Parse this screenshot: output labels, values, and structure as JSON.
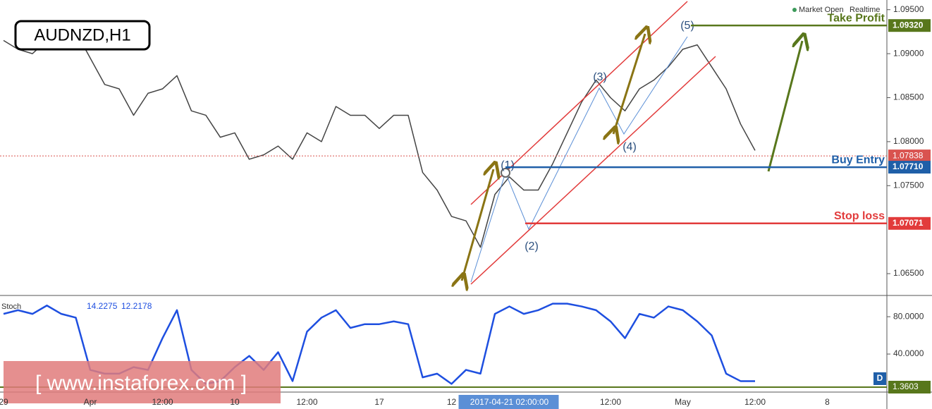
{
  "chart_data": [
    {
      "type": "line",
      "title": "AUDNZD,H1",
      "status": "Market Open",
      "mode": "Realtime",
      "categories": [
        "29",
        null,
        null,
        null,
        null,
        null,
        "Apr",
        null,
        null,
        null,
        null,
        "12:00",
        null,
        null,
        null,
        null,
        "10",
        null,
        null,
        null,
        null,
        "12:00",
        null,
        null,
        null,
        null,
        "17",
        null,
        null,
        null,
        null,
        "12",
        null,
        null,
        null,
        "2017-04-21 02:00:00",
        null,
        null,
        null,
        null,
        null,
        null,
        "12:00",
        null,
        null,
        null,
        null,
        "May",
        null,
        null,
        null,
        null,
        "12:00",
        null,
        null,
        null,
        null,
        "8"
      ],
      "series": [
        {
          "color": "#444444",
          "values": [
            1.0915,
            1.0905,
            1.09,
            1.0915,
            1.092,
            1.0925,
            1.0895,
            1.0865,
            1.086,
            1.083,
            1.0855,
            1.086,
            1.0875,
            1.0835,
            1.083,
            1.0805,
            1.081,
            1.078,
            1.0785,
            1.0795,
            1.078,
            1.081,
            1.08,
            1.084,
            1.083,
            1.083,
            1.0815,
            1.083,
            1.083,
            1.0765,
            1.0745,
            1.0715,
            1.071,
            1.068,
            1.074,
            1.076,
            1.0745,
            1.0745,
            1.0775,
            1.081,
            1.0845,
            1.087,
            1.085,
            1.0835,
            1.086,
            1.087,
            1.0885,
            1.0905,
            1.091,
            1.0885,
            1.086,
            1.082,
            1.079,
            null,
            null,
            null,
            null,
            null
          ]
        }
      ],
      "ylim": [
        1.0626,
        1.0961
      ],
      "yticks": [
        {
          "value": 1.065,
          "label": "1.06500"
        },
        {
          "value": 1.075,
          "label": "1.07500"
        },
        {
          "value": 1.08,
          "label": "1.08000"
        },
        {
          "value": 1.085,
          "label": "1.08500"
        },
        {
          "value": 1.09,
          "label": "1.09000"
        },
        {
          "value": 1.095,
          "label": "1.09500"
        }
      ],
      "levels": [
        {
          "name": "Take Profit",
          "value": 1.0932,
          "label": "1.09320",
          "color": "#58771c"
        },
        {
          "name": "Buy Entry",
          "value": 1.0771,
          "label": "1.07710",
          "color": "#1f5fa8"
        },
        {
          "name": "Stop loss",
          "value": 1.07071,
          "label": "1.07071",
          "color": "#e23b3b"
        }
      ],
      "last_price": {
        "value": 1.07838,
        "label": "1.07838",
        "color": "#d9534f"
      },
      "waves": [
        "(1)",
        "(2)",
        "(3)",
        "(4)",
        "(5)"
      ]
    },
    {
      "type": "line",
      "title": "Stoch",
      "readouts": [
        "14.2275",
        "12.2178"
      ],
      "series": [
        {
          "color": "#1e4fe0",
          "values": [
            83,
            87,
            83,
            92,
            83,
            79,
            23,
            19,
            19,
            26,
            23,
            57,
            87,
            23,
            8,
            11,
            26,
            38,
            23,
            42,
            11,
            64,
            79,
            87,
            68,
            72,
            72,
            75,
            72,
            15,
            19,
            8,
            23,
            19,
            83,
            91,
            83,
            87,
            94,
            94,
            91,
            87,
            75,
            57,
            83,
            79,
            91,
            87,
            75,
            60,
            19,
            11,
            11,
            null,
            null,
            null,
            null,
            null
          ]
        }
      ],
      "ylim": [
        0,
        102
      ],
      "yticks": [
        {
          "value": 40,
          "label": "40.0000"
        },
        {
          "value": 80,
          "label": "80.0000"
        }
      ],
      "marker_label": "1.3603",
      "badge": "D"
    }
  ],
  "watermark": "[ www.instaforex.com ]"
}
